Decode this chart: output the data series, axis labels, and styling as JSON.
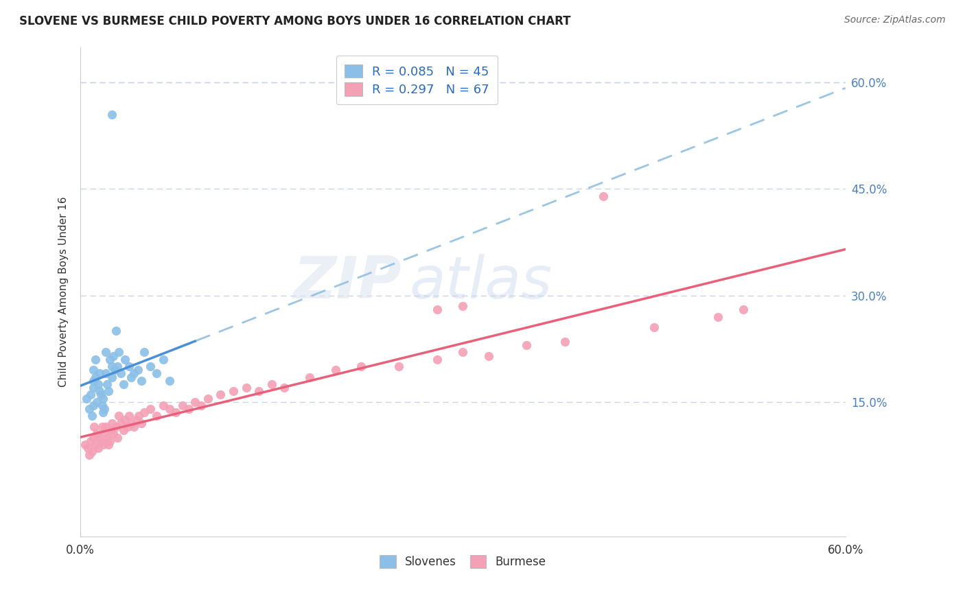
{
  "title": "SLOVENE VS BURMESE CHILD POVERTY AMONG BOYS UNDER 16 CORRELATION CHART",
  "source": "Source: ZipAtlas.com",
  "ylabel_label": "Child Poverty Among Boys Under 16",
  "right_ytick_vals": [
    0.6,
    0.45,
    0.3,
    0.15
  ],
  "xlim": [
    0.0,
    0.6
  ],
  "ylim": [
    -0.04,
    0.65
  ],
  "watermark_zip": "ZIP",
  "watermark_atlas": "atlas",
  "slovene_color": "#8bbfe8",
  "burmese_color": "#f4a0b5",
  "slovene_line_color": "#4a90d9",
  "burmese_line_color": "#e8607a",
  "background_color": "#ffffff",
  "grid_color": "#c8d4e8",
  "slovene_x": [
    0.005,
    0.007,
    0.008,
    0.009,
    0.01,
    0.01,
    0.01,
    0.01,
    0.012,
    0.012,
    0.013,
    0.014,
    0.015,
    0.015,
    0.016,
    0.017,
    0.018,
    0.018,
    0.019,
    0.02,
    0.02,
    0.021,
    0.022,
    0.023,
    0.025,
    0.025,
    0.026,
    0.027,
    0.028,
    0.029,
    0.03,
    0.032,
    0.034,
    0.035,
    0.038,
    0.04,
    0.042,
    0.045,
    0.048,
    0.05,
    0.055,
    0.06,
    0.065,
    0.07,
    0.025
  ],
  "slovene_y": [
    0.155,
    0.14,
    0.16,
    0.13,
    0.195,
    0.18,
    0.17,
    0.145,
    0.21,
    0.185,
    0.15,
    0.175,
    0.165,
    0.19,
    0.16,
    0.145,
    0.135,
    0.155,
    0.14,
    0.22,
    0.19,
    0.175,
    0.165,
    0.21,
    0.2,
    0.185,
    0.215,
    0.195,
    0.25,
    0.2,
    0.22,
    0.19,
    0.175,
    0.21,
    0.2,
    0.185,
    0.19,
    0.195,
    0.18,
    0.22,
    0.2,
    0.19,
    0.21,
    0.18,
    0.555
  ],
  "burmese_x": [
    0.004,
    0.006,
    0.007,
    0.008,
    0.009,
    0.01,
    0.011,
    0.012,
    0.013,
    0.014,
    0.015,
    0.016,
    0.017,
    0.018,
    0.019,
    0.02,
    0.021,
    0.022,
    0.023,
    0.024,
    0.025,
    0.026,
    0.028,
    0.029,
    0.03,
    0.032,
    0.034,
    0.035,
    0.037,
    0.038,
    0.04,
    0.042,
    0.044,
    0.046,
    0.048,
    0.05,
    0.055,
    0.06,
    0.065,
    0.07,
    0.075,
    0.08,
    0.085,
    0.09,
    0.095,
    0.1,
    0.11,
    0.12,
    0.13,
    0.14,
    0.15,
    0.16,
    0.18,
    0.2,
    0.22,
    0.25,
    0.28,
    0.3,
    0.32,
    0.35,
    0.38,
    0.41,
    0.45,
    0.5,
    0.52,
    0.3,
    0.28
  ],
  "burmese_y": [
    0.09,
    0.085,
    0.075,
    0.095,
    0.08,
    0.1,
    0.115,
    0.09,
    0.105,
    0.085,
    0.1,
    0.095,
    0.115,
    0.09,
    0.105,
    0.115,
    0.1,
    0.09,
    0.095,
    0.11,
    0.12,
    0.105,
    0.115,
    0.1,
    0.13,
    0.12,
    0.11,
    0.125,
    0.115,
    0.13,
    0.12,
    0.115,
    0.125,
    0.13,
    0.12,
    0.135,
    0.14,
    0.13,
    0.145,
    0.14,
    0.135,
    0.145,
    0.14,
    0.15,
    0.145,
    0.155,
    0.16,
    0.165,
    0.17,
    0.165,
    0.175,
    0.17,
    0.185,
    0.195,
    0.2,
    0.2,
    0.21,
    0.22,
    0.215,
    0.23,
    0.235,
    0.44,
    0.255,
    0.27,
    0.28,
    0.285,
    0.28
  ]
}
